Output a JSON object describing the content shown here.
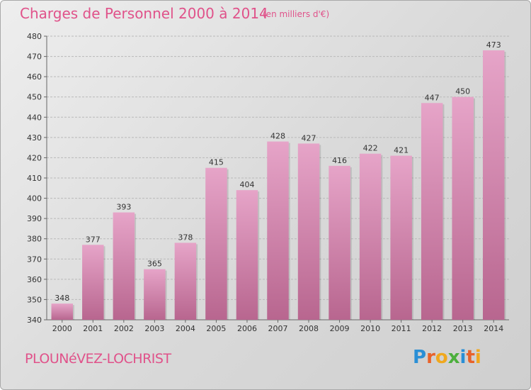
{
  "header": {
    "title": "Charges de Personnel 2000 à 2014",
    "subtitle": "(en milliers d'€)"
  },
  "footer": {
    "commune": "PLOUNéVEZ-LOCHRIST",
    "logo_text": "Proxiti",
    "logo_letters": [
      {
        "ch": "P",
        "color": "#2a8fd6"
      },
      {
        "ch": "r",
        "color": "#e8622a"
      },
      {
        "ch": "o",
        "color": "#f0a81e"
      },
      {
        "ch": "x",
        "color": "#4caf3c"
      },
      {
        "ch": "i",
        "color": "#2a8fd6"
      },
      {
        "ch": "t",
        "color": "#e8622a"
      },
      {
        "ch": "i",
        "color": "#f0a81e"
      }
    ]
  },
  "colors": {
    "title": "#e0528a",
    "bar_top": "#e6a4c8",
    "bar_bottom": "#b8668f",
    "grid": "#b9b9b9"
  },
  "chart_data": {
    "type": "bar",
    "categories": [
      "2000",
      "2001",
      "2002",
      "2003",
      "2004",
      "2005",
      "2006",
      "2007",
      "2008",
      "2009",
      "2010",
      "2011",
      "2012",
      "2013",
      "2014"
    ],
    "values": [
      348,
      377,
      393,
      365,
      378,
      415,
      404,
      428,
      427,
      416,
      422,
      421,
      447,
      450,
      473
    ],
    "ylim": [
      340,
      480
    ],
    "yticks": [
      340,
      350,
      360,
      370,
      380,
      390,
      400,
      410,
      420,
      430,
      440,
      450,
      460,
      470,
      480
    ],
    "grid": true,
    "xlabel": "",
    "ylabel": ""
  }
}
